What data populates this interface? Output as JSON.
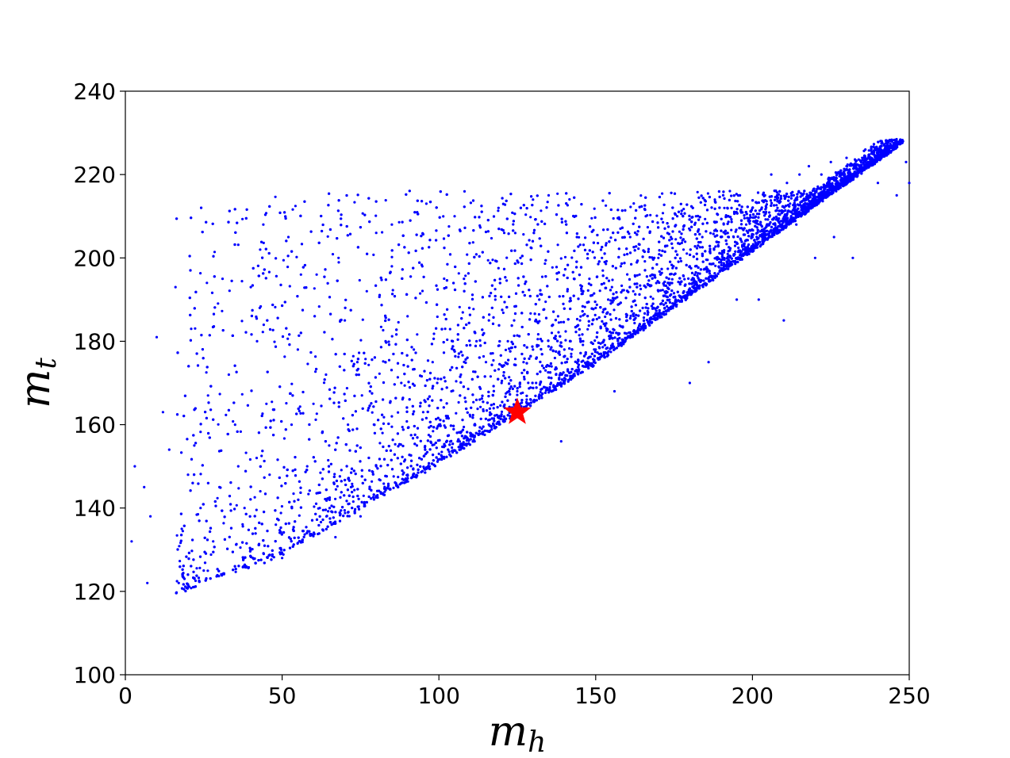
{
  "chart_data": {
    "type": "scatter",
    "title": "",
    "xlabel": "m",
    "xlabel_sub": "h",
    "ylabel": "m",
    "ylabel_sub": "t",
    "xlim": [
      0,
      250
    ],
    "ylim": [
      100,
      240
    ],
    "xticks": [
      "0",
      "50",
      "100",
      "150",
      "200",
      "250"
    ],
    "yticks": [
      "100",
      "120",
      "140",
      "160",
      "180",
      "200",
      "220",
      "240"
    ],
    "grid": false,
    "legend": "none",
    "series": [
      {
        "color": "#0000ff",
        "marker": "dot",
        "approximate_count": 8000,
        "distribution_note": "dense band from (20,120) to (248,228) with lower edge along (20,120),(50,129),(100,151),(150,175),(200,202),(248,228) and sparse scatter above up to about y=215",
        "points": [
          [
            2,
            132
          ],
          [
            3,
            150
          ],
          [
            6,
            145
          ],
          [
            7,
            122
          ],
          [
            8,
            138
          ],
          [
            10,
            181
          ],
          [
            12,
            163
          ],
          [
            14,
            154
          ],
          [
            16,
            193
          ],
          [
            18,
            135
          ],
          [
            20,
            148
          ],
          [
            20,
            121
          ],
          [
            21,
            183
          ],
          [
            22,
            155
          ],
          [
            24,
            140
          ],
          [
            25,
            125
          ],
          [
            26,
            194
          ],
          [
            28,
            132
          ],
          [
            30,
            145
          ],
          [
            31,
            195
          ],
          [
            33,
            172
          ],
          [
            35,
            160
          ],
          [
            36,
            150
          ],
          [
            38,
            140
          ],
          [
            40,
            193
          ],
          [
            40,
            130
          ],
          [
            42,
            180
          ],
          [
            43,
            202
          ],
          [
            44,
            208
          ],
          [
            45,
            165
          ],
          [
            46,
            148
          ],
          [
            48,
            136
          ],
          [
            50,
            128
          ],
          [
            52,
            205
          ],
          [
            53,
            160
          ],
          [
            55,
            178
          ],
          [
            56,
            196
          ],
          [
            58,
            150
          ],
          [
            60,
            165
          ],
          [
            61,
            196
          ],
          [
            62,
            140
          ],
          [
            64,
            172
          ],
          [
            65,
            155
          ],
          [
            67,
            133
          ],
          [
            68,
            200
          ],
          [
            70,
            185
          ],
          [
            71,
            160
          ],
          [
            72,
            145
          ],
          [
            74,
            175
          ],
          [
            75,
            138
          ],
          [
            77,
            192
          ],
          [
            78,
            168
          ],
          [
            80,
            206
          ],
          [
            80,
            150
          ],
          [
            82,
            158
          ],
          [
            83,
            180
          ],
          [
            85,
            208
          ],
          [
            85,
            162
          ],
          [
            87,
            145
          ],
          [
            88,
            170
          ],
          [
            90,
            186
          ],
          [
            90,
            148
          ],
          [
            92,
            178
          ],
          [
            93,
            155
          ],
          [
            95,
            163
          ],
          [
            96,
            213
          ],
          [
            97,
            150
          ],
          [
            98,
            175
          ],
          [
            100,
            160
          ],
          [
            100,
            153
          ],
          [
            102,
            183
          ],
          [
            104,
            168
          ],
          [
            105,
            210
          ],
          [
            106,
            156
          ],
          [
            107,
            172
          ],
          [
            108,
            195
          ],
          [
            110,
            162
          ],
          [
            110,
            158
          ],
          [
            112,
            180
          ],
          [
            113,
            166
          ],
          [
            115,
            175
          ],
          [
            116,
            160
          ],
          [
            118,
            190
          ],
          [
            119,
            212
          ],
          [
            120,
            170
          ],
          [
            121,
            164
          ],
          [
            122,
            180
          ],
          [
            124,
            185
          ],
          [
            125,
            168
          ],
          [
            126,
            200
          ],
          [
            127,
            175
          ],
          [
            128,
            166
          ],
          [
            130,
            214
          ],
          [
            130,
            178
          ],
          [
            131,
            170
          ],
          [
            132,
            190
          ],
          [
            134,
            173
          ],
          [
            135,
            215
          ],
          [
            136,
            182
          ],
          [
            137,
            176
          ],
          [
            138,
            186
          ],
          [
            139,
            156
          ],
          [
            140,
            178
          ],
          [
            141,
            192
          ],
          [
            142,
            180
          ],
          [
            144,
            205
          ],
          [
            145,
            185
          ],
          [
            146,
            180
          ],
          [
            148,
            195
          ],
          [
            150,
            188
          ],
          [
            150,
            178
          ],
          [
            152,
            200
          ],
          [
            154,
            190
          ],
          [
            155,
            182
          ],
          [
            156,
            168
          ],
          [
            158,
            198
          ],
          [
            160,
            185
          ],
          [
            161,
            205
          ],
          [
            162,
            192
          ],
          [
            164,
            196
          ],
          [
            165,
            188
          ],
          [
            166,
            210
          ],
          [
            168,
            196
          ],
          [
            170,
            200
          ],
          [
            170,
            192
          ],
          [
            172,
            188
          ],
          [
            174,
            205
          ],
          [
            175,
            196
          ],
          [
            176,
            210
          ],
          [
            178,
            202
          ],
          [
            180,
            198
          ],
          [
            180,
            170
          ],
          [
            182,
            210
          ],
          [
            184,
            205
          ],
          [
            186,
            175
          ],
          [
            188,
            214
          ],
          [
            190,
            205
          ],
          [
            191,
            200
          ],
          [
            192,
            212
          ],
          [
            194,
            205
          ],
          [
            195,
            190
          ],
          [
            196,
            215
          ],
          [
            198,
            208
          ],
          [
            200,
            205
          ],
          [
            200,
            212
          ],
          [
            202,
            190
          ],
          [
            204,
            215
          ],
          [
            205,
            208
          ],
          [
            206,
            220
          ],
          [
            208,
            212
          ],
          [
            210,
            185
          ],
          [
            211,
            218
          ],
          [
            212,
            213
          ],
          [
            214,
            208
          ],
          [
            215,
            220
          ],
          [
            216,
            215
          ],
          [
            218,
            222
          ],
          [
            220,
            216
          ],
          [
            220,
            200
          ],
          [
            222,
            220
          ],
          [
            224,
            218
          ],
          [
            225,
            223
          ],
          [
            226,
            205
          ],
          [
            228,
            220
          ],
          [
            230,
            224
          ],
          [
            230,
            222
          ],
          [
            232,
            200
          ],
          [
            233,
            222
          ],
          [
            235,
            224
          ],
          [
            236,
            226
          ],
          [
            238,
            224
          ],
          [
            240,
            225
          ],
          [
            241,
            226
          ],
          [
            242,
            227
          ],
          [
            244,
            227
          ],
          [
            245,
            227
          ],
          [
            246,
            228
          ],
          [
            247,
            228
          ],
          [
            248,
            228
          ],
          [
            249,
            223
          ],
          [
            250,
            218
          ],
          [
            246,
            215
          ],
          [
            240,
            218
          ]
        ]
      },
      {
        "color": "#ff0000",
        "marker": "star",
        "points": [
          [
            125,
            163
          ]
        ]
      }
    ]
  }
}
